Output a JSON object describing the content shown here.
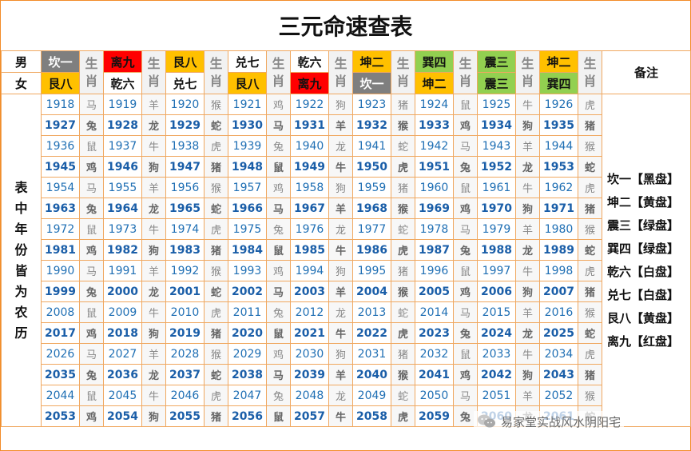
{
  "title": "三元命速查表",
  "header": {
    "male_label": "男",
    "female_label": "女",
    "zodiac_label": "生肖",
    "note_label": "备注",
    "male_gua": [
      {
        "text": "坎一",
        "color": "black"
      },
      {
        "text": "离九",
        "color": "red"
      },
      {
        "text": "艮八",
        "color": "yellow"
      },
      {
        "text": "兑七",
        "color": "white"
      },
      {
        "text": "乾六",
        "color": "white"
      },
      {
        "text": "坤二",
        "color": "yellow"
      },
      {
        "text": "巽四",
        "color": "green"
      },
      {
        "text": "震三",
        "color": "green"
      },
      {
        "text": "坤二",
        "color": "yellow"
      }
    ],
    "female_gua": [
      {
        "text": "艮八",
        "color": "yellow"
      },
      {
        "text": "乾六",
        "color": "white"
      },
      {
        "text": "兑七",
        "color": "white"
      },
      {
        "text": "艮八",
        "color": "yellow"
      },
      {
        "text": "离九",
        "color": "red"
      },
      {
        "text": "坎一",
        "color": "black"
      },
      {
        "text": "坤二",
        "color": "yellow"
      },
      {
        "text": "震三",
        "color": "green"
      },
      {
        "text": "巽四",
        "color": "green"
      }
    ]
  },
  "side_label": "表中年份皆为农历",
  "rows": [
    [
      [
        "1918",
        "马"
      ],
      [
        "1919",
        "羊"
      ],
      [
        "1920",
        "猴"
      ],
      [
        "1921",
        "鸡"
      ],
      [
        "1922",
        "狗"
      ],
      [
        "1923",
        "猪"
      ],
      [
        "1924",
        "鼠"
      ],
      [
        "1925",
        "牛"
      ],
      [
        "1926",
        "虎"
      ]
    ],
    [
      [
        "1927",
        "兔"
      ],
      [
        "1928",
        "龙"
      ],
      [
        "1929",
        "蛇"
      ],
      [
        "1930",
        "马"
      ],
      [
        "1931",
        "羊"
      ],
      [
        "1932",
        "猴"
      ],
      [
        "1933",
        "鸡"
      ],
      [
        "1934",
        "狗"
      ],
      [
        "1935",
        "猪"
      ]
    ],
    [
      [
        "1936",
        "鼠"
      ],
      [
        "1937",
        "牛"
      ],
      [
        "1938",
        "虎"
      ],
      [
        "1939",
        "兔"
      ],
      [
        "1940",
        "龙"
      ],
      [
        "1941",
        "蛇"
      ],
      [
        "1942",
        "马"
      ],
      [
        "1943",
        "羊"
      ],
      [
        "1944",
        "猴"
      ]
    ],
    [
      [
        "1945",
        "鸡"
      ],
      [
        "1946",
        "狗"
      ],
      [
        "1947",
        "猪"
      ],
      [
        "1948",
        "鼠"
      ],
      [
        "1949",
        "牛"
      ],
      [
        "1950",
        "虎"
      ],
      [
        "1951",
        "兔"
      ],
      [
        "1952",
        "龙"
      ],
      [
        "1953",
        "蛇"
      ]
    ],
    [
      [
        "1954",
        "马"
      ],
      [
        "1955",
        "羊"
      ],
      [
        "1956",
        "猴"
      ],
      [
        "1957",
        "鸡"
      ],
      [
        "1958",
        "狗"
      ],
      [
        "1959",
        "猪"
      ],
      [
        "1960",
        "鼠"
      ],
      [
        "1961",
        "牛"
      ],
      [
        "1962",
        "虎"
      ]
    ],
    [
      [
        "1963",
        "兔"
      ],
      [
        "1964",
        "龙"
      ],
      [
        "1965",
        "蛇"
      ],
      [
        "1966",
        "马"
      ],
      [
        "1967",
        "羊"
      ],
      [
        "1968",
        "猴"
      ],
      [
        "1969",
        "鸡"
      ],
      [
        "1970",
        "狗"
      ],
      [
        "1971",
        "猪"
      ]
    ],
    [
      [
        "1972",
        "鼠"
      ],
      [
        "1973",
        "牛"
      ],
      [
        "1974",
        "虎"
      ],
      [
        "1975",
        "兔"
      ],
      [
        "1976",
        "龙"
      ],
      [
        "1977",
        "蛇"
      ],
      [
        "1978",
        "马"
      ],
      [
        "1979",
        "羊"
      ],
      [
        "1980",
        "猴"
      ]
    ],
    [
      [
        "1981",
        "鸡"
      ],
      [
        "1982",
        "狗"
      ],
      [
        "1983",
        "猪"
      ],
      [
        "1984",
        "鼠"
      ],
      [
        "1985",
        "牛"
      ],
      [
        "1986",
        "虎"
      ],
      [
        "1987",
        "兔"
      ],
      [
        "1988",
        "龙"
      ],
      [
        "1989",
        "蛇"
      ]
    ],
    [
      [
        "1990",
        "马"
      ],
      [
        "1991",
        "羊"
      ],
      [
        "1992",
        "猴"
      ],
      [
        "1993",
        "鸡"
      ],
      [
        "1994",
        "狗"
      ],
      [
        "1995",
        "猪"
      ],
      [
        "1996",
        "鼠"
      ],
      [
        "1997",
        "牛"
      ],
      [
        "1998",
        "虎"
      ]
    ],
    [
      [
        "1999",
        "兔"
      ],
      [
        "2000",
        "龙"
      ],
      [
        "2001",
        "蛇"
      ],
      [
        "2002",
        "马"
      ],
      [
        "2003",
        "羊"
      ],
      [
        "2004",
        "猴"
      ],
      [
        "2005",
        "鸡"
      ],
      [
        "2006",
        "狗"
      ],
      [
        "2007",
        "猪"
      ]
    ],
    [
      [
        "2008",
        "鼠"
      ],
      [
        "2009",
        "牛"
      ],
      [
        "2010",
        "虎"
      ],
      [
        "2011",
        "兔"
      ],
      [
        "2012",
        "龙"
      ],
      [
        "2013",
        "蛇"
      ],
      [
        "2014",
        "马"
      ],
      [
        "2015",
        "羊"
      ],
      [
        "2016",
        "猴"
      ]
    ],
    [
      [
        "2017",
        "鸡"
      ],
      [
        "2018",
        "狗"
      ],
      [
        "2019",
        "猪"
      ],
      [
        "2020",
        "鼠"
      ],
      [
        "2021",
        "牛"
      ],
      [
        "2022",
        "虎"
      ],
      [
        "2023",
        "兔"
      ],
      [
        "2024",
        "龙"
      ],
      [
        "2025",
        "蛇"
      ]
    ],
    [
      [
        "2026",
        "马"
      ],
      [
        "2027",
        "羊"
      ],
      [
        "2028",
        "猴"
      ],
      [
        "2029",
        "鸡"
      ],
      [
        "2030",
        "狗"
      ],
      [
        "2031",
        "猪"
      ],
      [
        "2032",
        "鼠"
      ],
      [
        "2033",
        "牛"
      ],
      [
        "2034",
        "虎"
      ]
    ],
    [
      [
        "2035",
        "兔"
      ],
      [
        "2036",
        "龙"
      ],
      [
        "2037",
        "蛇"
      ],
      [
        "2038",
        "马"
      ],
      [
        "2039",
        "羊"
      ],
      [
        "2040",
        "猴"
      ],
      [
        "2041",
        "鸡"
      ],
      [
        "2042",
        "狗"
      ],
      [
        "2043",
        "猪"
      ]
    ],
    [
      [
        "2044",
        "鼠"
      ],
      [
        "2045",
        "牛"
      ],
      [
        "2046",
        "虎"
      ],
      [
        "2047",
        "兔"
      ],
      [
        "2048",
        "龙"
      ],
      [
        "2049",
        "蛇"
      ],
      [
        "2050",
        "马"
      ],
      [
        "2051",
        "羊"
      ],
      [
        "2052",
        "猴"
      ]
    ],
    [
      [
        "2053",
        "鸡"
      ],
      [
        "2054",
        "狗"
      ],
      [
        "2055",
        "猪"
      ],
      [
        "2056",
        "鼠"
      ],
      [
        "2057",
        "牛"
      ],
      [
        "2058",
        "虎"
      ],
      [
        "2059",
        "兔"
      ],
      [
        "2060",
        "龙"
      ],
      [
        "2061",
        "蛇"
      ]
    ]
  ],
  "notes": [
    "坎一【黑盘】",
    "坤二【黄盘】",
    "震三【绿盘】",
    "巽四【绿盘】",
    "乾六【白盘】",
    "兑七【白盘】",
    "艮八【黄盘】",
    "离九【红盘】"
  ],
  "watermark": {
    "text": "易家堂实战风水阴阳宅",
    "icon": "wechat-icon"
  }
}
